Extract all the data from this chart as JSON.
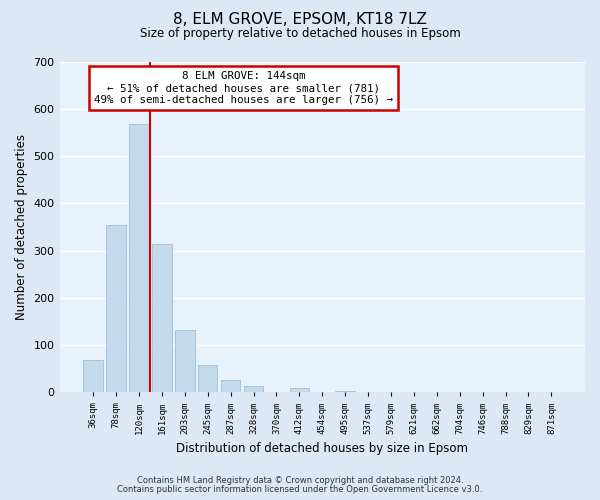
{
  "title": "8, ELM GROVE, EPSOM, KT18 7LZ",
  "subtitle": "Size of property relative to detached houses in Epsom",
  "xlabel": "Distribution of detached houses by size in Epsom",
  "ylabel": "Number of detached properties",
  "bar_labels": [
    "36sqm",
    "78sqm",
    "120sqm",
    "161sqm",
    "203sqm",
    "245sqm",
    "287sqm",
    "328sqm",
    "370sqm",
    "412sqm",
    "454sqm",
    "495sqm",
    "537sqm",
    "579sqm",
    "621sqm",
    "662sqm",
    "704sqm",
    "746sqm",
    "788sqm",
    "829sqm",
    "871sqm"
  ],
  "bar_values": [
    68,
    355,
    568,
    313,
    133,
    57,
    27,
    13,
    0,
    10,
    0,
    3,
    0,
    0,
    0,
    0,
    0,
    0,
    0,
    0,
    0
  ],
  "bar_color": "#c5d9ec",
  "bar_edge_color": "#a0bdd8",
  "marker_line_color": "#cc0000",
  "annotation_title": "8 ELM GROVE: 144sqm",
  "annotation_line1": "← 51% of detached houses are smaller (781)",
  "annotation_line2": "49% of semi-detached houses are larger (756) →",
  "annotation_box_color": "#cc0000",
  "ylim": [
    0,
    700
  ],
  "yticks": [
    0,
    100,
    200,
    300,
    400,
    500,
    600,
    700
  ],
  "footer_line1": "Contains HM Land Registry data © Crown copyright and database right 2024.",
  "footer_line2": "Contains public sector information licensed under the Open Government Licence v3.0.",
  "bg_color": "#dce8f5",
  "plot_bg_color": "#e8f2fc"
}
